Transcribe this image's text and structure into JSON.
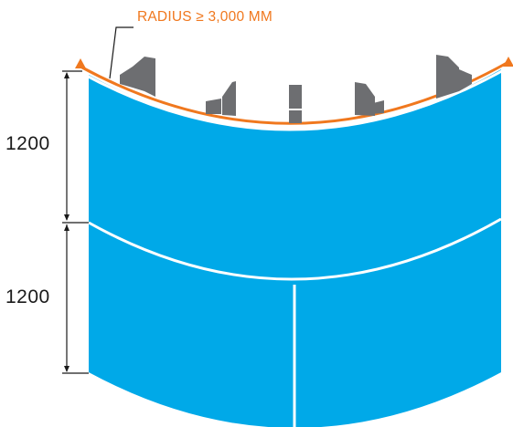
{
  "annotation": {
    "radius_label": "RADIUS ≥ 3,000 MM"
  },
  "dimensions": {
    "upper_height": "1200",
    "lower_height": "1200"
  },
  "colors": {
    "panel": "#00a9e8",
    "seam": "#ffffff",
    "arc": "#f0781e",
    "icon": "#6d6e71",
    "dimension_line": "#1a1a1a"
  },
  "viewpoint_icons": [
    "viewpoint-icon-far-left",
    "viewpoint-icon-left",
    "viewpoint-icon-center",
    "viewpoint-icon-right",
    "viewpoint-icon-far-right"
  ]
}
